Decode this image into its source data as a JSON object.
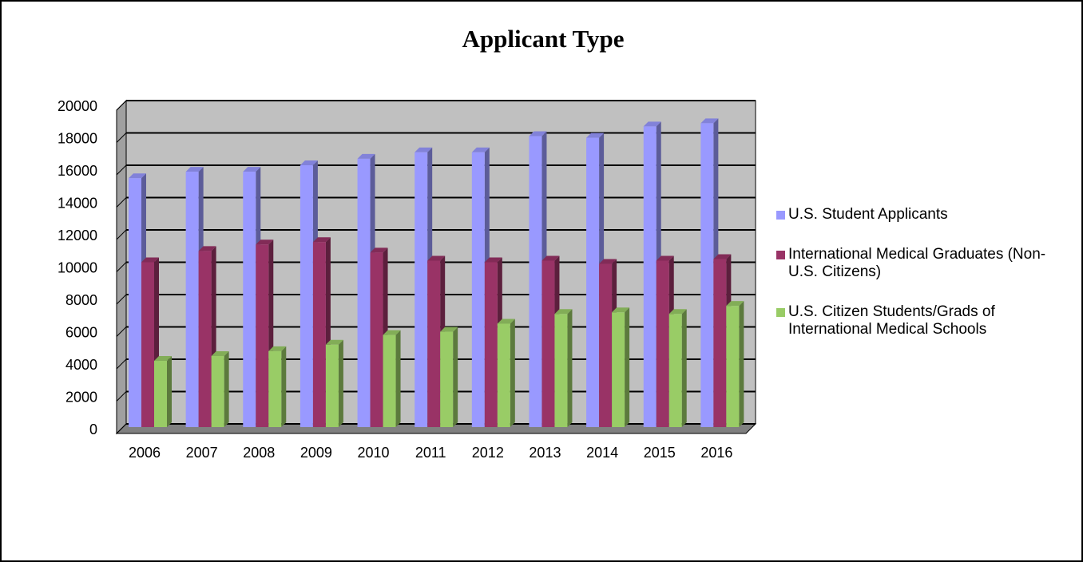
{
  "chart_data": {
    "type": "bar",
    "title": "Applicant Type",
    "categories": [
      "2006",
      "2007",
      "2008",
      "2009",
      "2010",
      "2011",
      "2012",
      "2013",
      "2014",
      "2015",
      "2016"
    ],
    "series": [
      {
        "name": "U.S. Student Applicants",
        "color": "#9999ff",
        "values": [
          15200,
          15600,
          15600,
          16000,
          16400,
          16800,
          16800,
          17800,
          17700,
          18400,
          18600
        ]
      },
      {
        "name": "International Medical Graduates (Non-U.S. Citizens)",
        "color": "#993366",
        "values": [
          10000,
          10700,
          11100,
          11250,
          10600,
          10100,
          10000,
          10100,
          9900,
          10100,
          10200
        ]
      },
      {
        "name": "U.S. Citizen Students/Grads of International Medical Schools",
        "color": "#99cc66",
        "values": [
          3900,
          4200,
          4500,
          4900,
          5500,
          5700,
          6200,
          6800,
          6900,
          6800,
          7300
        ]
      }
    ],
    "ylim": [
      0,
      20000
    ],
    "yticks": [
      0,
      2000,
      4000,
      6000,
      8000,
      10000,
      12000,
      14000,
      16000,
      18000,
      20000
    ],
    "grid": true,
    "legend": "right"
  }
}
